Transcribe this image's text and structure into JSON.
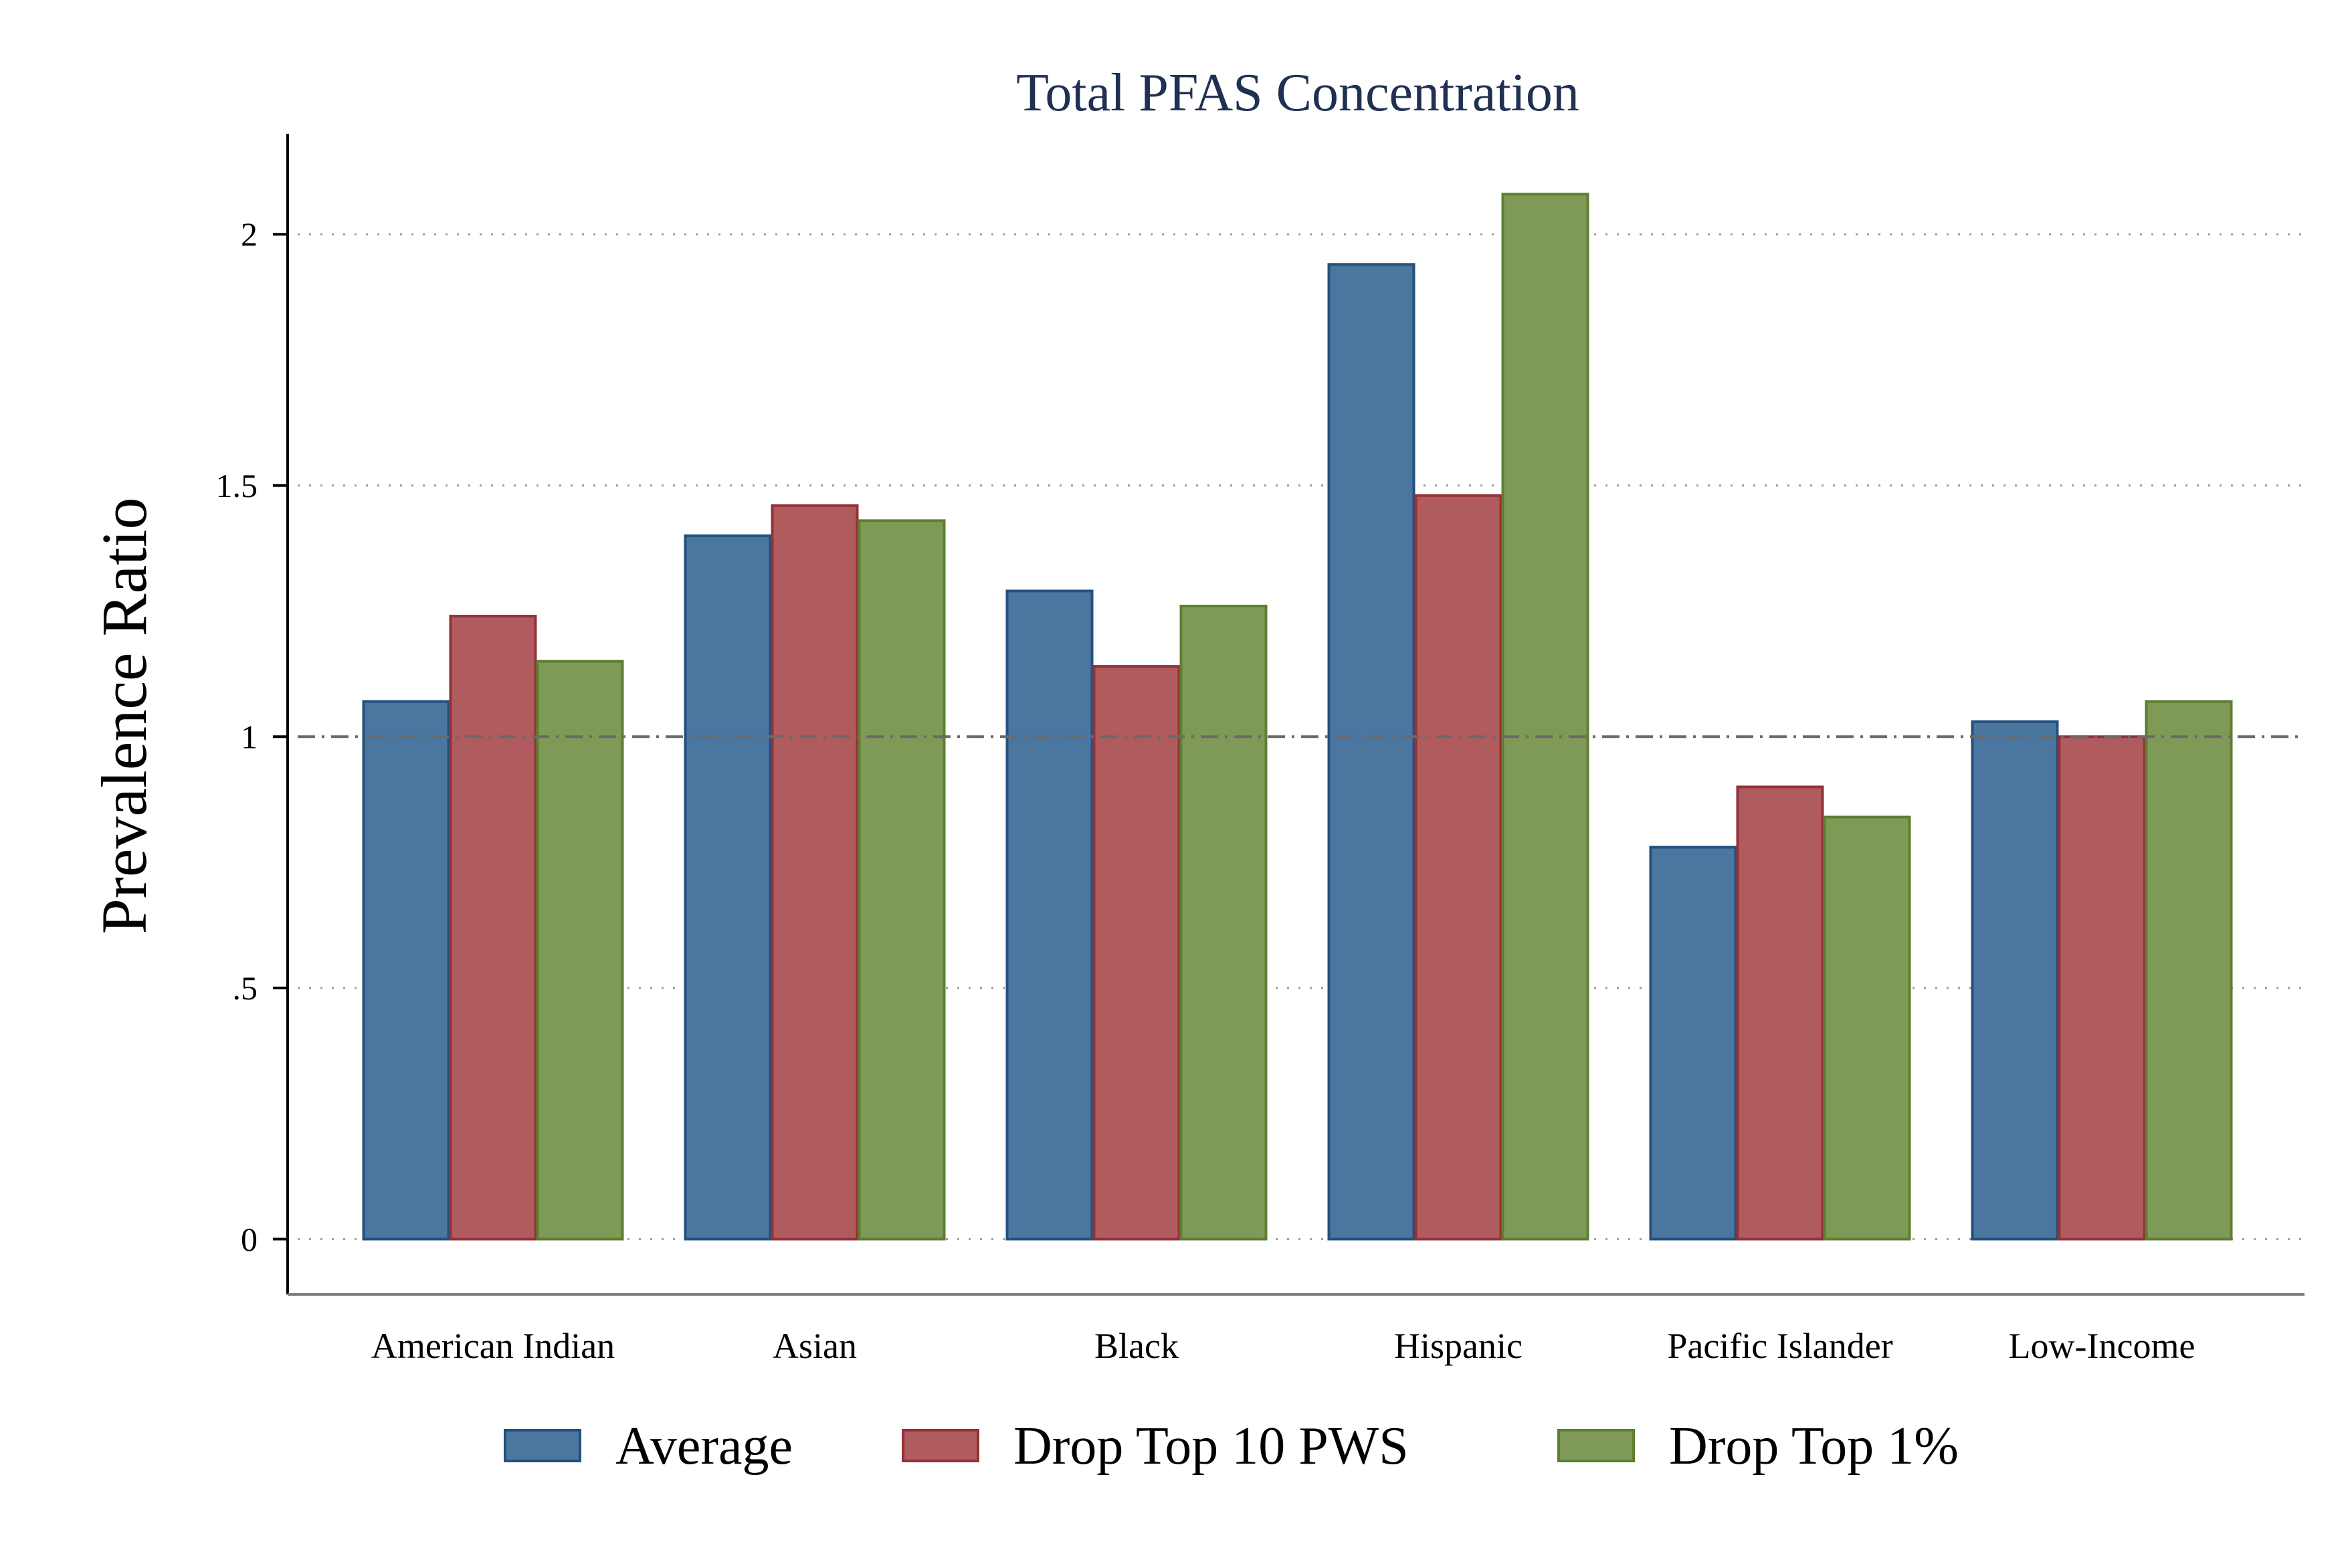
{
  "chart_data": {
    "type": "bar",
    "title": "Total PFAS Concentration",
    "ylabel": "Prevalence Ratio",
    "xlabel": "",
    "categories": [
      "American Indian",
      "Asian",
      "Black",
      "Hispanic",
      "Pacific Islander",
      "Low-Income"
    ],
    "series": [
      {
        "name": "Average",
        "values": [
          1.07,
          1.4,
          1.29,
          1.94,
          0.78,
          1.03
        ],
        "color": "#4a76a0",
        "edge": "#24507e"
      },
      {
        "name": "Drop Top 10 PWS",
        "values": [
          1.24,
          1.46,
          1.14,
          1.48,
          0.9,
          1.0
        ],
        "color": "#b05c5e",
        "edge": "#963038"
      },
      {
        "name": "Drop Top 1%",
        "values": [
          1.15,
          1.43,
          1.26,
          2.08,
          0.84,
          1.07
        ],
        "color": "#7f9a56",
        "edge": "#5e7e30"
      }
    ],
    "yticks": [
      {
        "value": 0,
        "label": "0"
      },
      {
        "value": 0.5,
        "label": ".5"
      },
      {
        "value": 1,
        "label": "1"
      },
      {
        "value": 1.5,
        "label": "1.5"
      },
      {
        "value": 2,
        "label": "2"
      }
    ],
    "ylim": [
      -0.11,
      2.2
    ],
    "reference_line": 1,
    "grid": true,
    "legend_position": "bottom"
  }
}
